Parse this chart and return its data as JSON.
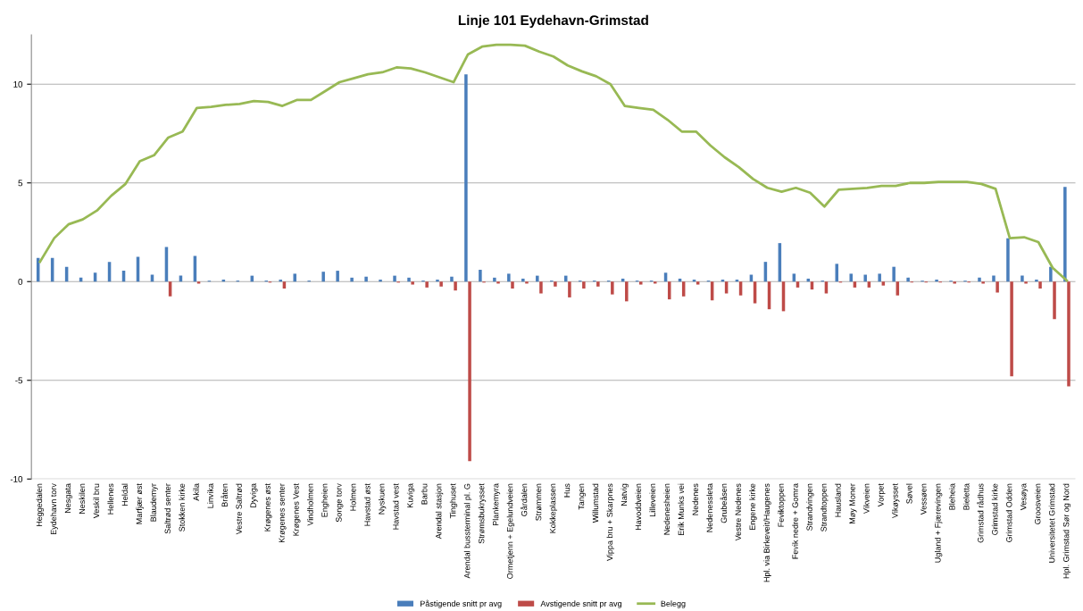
{
  "chart_data": {
    "type": "bar",
    "title": "Linje 101 Eydehavn-Grimstad",
    "categories": [
      "Heggedalen",
      "Eydehavn torv",
      "Nesgata",
      "Neskilen",
      "Veskil bru",
      "Hellenes",
      "Heldal",
      "Marfjær øst",
      "Blaudemyr",
      "Saltrød senter",
      "Stokken kirke",
      "Akila",
      "Linvika",
      "Bråten",
      "Vestre Saltrød",
      "Dyviga",
      "Krøgenes øst",
      "Krøgenes senter",
      "Krøgenes Vest",
      "Vindholmen",
      "Engheien",
      "Songe torv",
      "Holmen",
      "Havstad øst",
      "Nyskuen",
      "Havstad vest",
      "Kuviga",
      "Barbu",
      "Arendal stasjon",
      "Tinghuset",
      "Arendal bussterminal pl. G",
      "Strømsbukrysset",
      "Plankemyra",
      "Ormetjenn + Egelundveien",
      "Gårdalen",
      "Strømmen",
      "Kokkeplassen",
      "Hus",
      "Tangen",
      "Willumstad",
      "Vippa bru + Skarpnes",
      "Natvig",
      "Havoddveien",
      "Lilleveien",
      "Nedenesheien",
      "Erik Munks vei",
      "Nedenes",
      "Nedenessleta",
      "Grubeåsen",
      "Vestre Nedenes",
      "Engene kirke",
      "Hpl. via Birkeveit/Haugenes",
      "Feviktoppen",
      "Fevik nedre + Gomra",
      "Strandvingen",
      "Strandtoppen",
      "Hausland",
      "Møy Moner",
      "Vikveien",
      "Vorpet",
      "Vikøysset",
      "Søvel",
      "Vessøen",
      "Ugland + Fjærevingen",
      "Bleheia",
      "Bieletta",
      "Grimstad rådhus",
      "Grimstad kirke",
      "Grimstad Odden",
      "Vesøya",
      "Groosveien",
      "Universitetet Grimstad",
      "Hpl. Grimstad Sør og Nord"
    ],
    "series": [
      {
        "name": "Påstigende snitt pr avg",
        "color": "#4a7ebb",
        "values": [
          1.2,
          1.2,
          0.75,
          0.2,
          0.45,
          1.0,
          0.55,
          1.25,
          0.35,
          1.75,
          0.3,
          1.3,
          0.05,
          0.1,
          0.05,
          0.3,
          0.05,
          0.1,
          0.4,
          0.05,
          0.5,
          0.55,
          0.2,
          0.25,
          0.1,
          0.3,
          0.2,
          0.05,
          0.1,
          0.25,
          10.5,
          0.6,
          0.2,
          0.4,
          0.15,
          0.3,
          0.05,
          0.3,
          0.05,
          0.05,
          0.05,
          0.15,
          0.05,
          0.05,
          0.45,
          0.15,
          0.1,
          0.05,
          0.1,
          0.1,
          0.35,
          1.0,
          1.95,
          0.4,
          0.15,
          0.05,
          0.9,
          0.4,
          0.35,
          0.4,
          0.75,
          0.2,
          0.05,
          0.1,
          0.05,
          0.05,
          0.2,
          0.3,
          2.2,
          0.3,
          0.1,
          0.75,
          4.8
        ]
      },
      {
        "name": "Avstigende snitt pr avg",
        "color": "#be4b48",
        "values": [
          0,
          0,
          0,
          0,
          0,
          0,
          0,
          0,
          0,
          -0.75,
          0,
          -0.1,
          0,
          0,
          0,
          0,
          -0.05,
          -0.35,
          0,
          0,
          0,
          0,
          0,
          0,
          0,
          -0.05,
          -0.15,
          -0.3,
          -0.25,
          -0.45,
          -9.1,
          -0.05,
          -0.1,
          -0.35,
          -0.1,
          -0.6,
          -0.25,
          -0.8,
          -0.35,
          -0.25,
          -0.65,
          -1.0,
          -0.15,
          -0.1,
          -0.9,
          -0.75,
          -0.15,
          -0.95,
          -0.6,
          -0.7,
          -1.1,
          -1.4,
          -1.5,
          -0.3,
          -0.4,
          -0.6,
          -0.05,
          -0.3,
          -0.3,
          -0.2,
          -0.7,
          -0.05,
          -0.05,
          -0.05,
          -0.1,
          -0.05,
          -0.1,
          -0.55,
          -4.8,
          -0.1,
          -0.35,
          -1.9,
          -5.3
        ]
      },
      {
        "name": "Belegg",
        "type": "line",
        "color": "#98b954",
        "values": [
          1.0,
          2.2,
          2.9,
          3.15,
          3.6,
          4.35,
          4.95,
          6.1,
          6.4,
          7.3,
          7.6,
          8.8,
          8.85,
          8.95,
          9.0,
          9.15,
          9.1,
          8.9,
          9.2,
          9.2,
          9.65,
          10.1,
          10.3,
          10.5,
          10.6,
          10.85,
          10.8,
          10.6,
          10.35,
          10.1,
          11.5,
          11.9,
          12.0,
          12.0,
          11.95,
          11.65,
          11.4,
          10.95,
          10.65,
          10.4,
          10.0,
          8.9,
          8.8,
          8.7,
          8.2,
          7.6,
          7.6,
          6.9,
          6.3,
          5.8,
          5.2,
          4.75,
          4.55,
          4.75,
          4.5,
          3.8,
          4.65,
          4.7,
          4.75,
          4.85,
          4.85,
          5.0,
          5.0,
          5.05,
          5.05,
          5.05,
          4.95,
          4.7,
          2.2,
          2.25,
          2.0,
          0.7,
          0.05
        ]
      }
    ],
    "ylim": [
      -10,
      12.5
    ],
    "yticks": [
      -10,
      -5,
      0,
      5,
      10
    ],
    "grid": "y",
    "legend": "bottom"
  }
}
